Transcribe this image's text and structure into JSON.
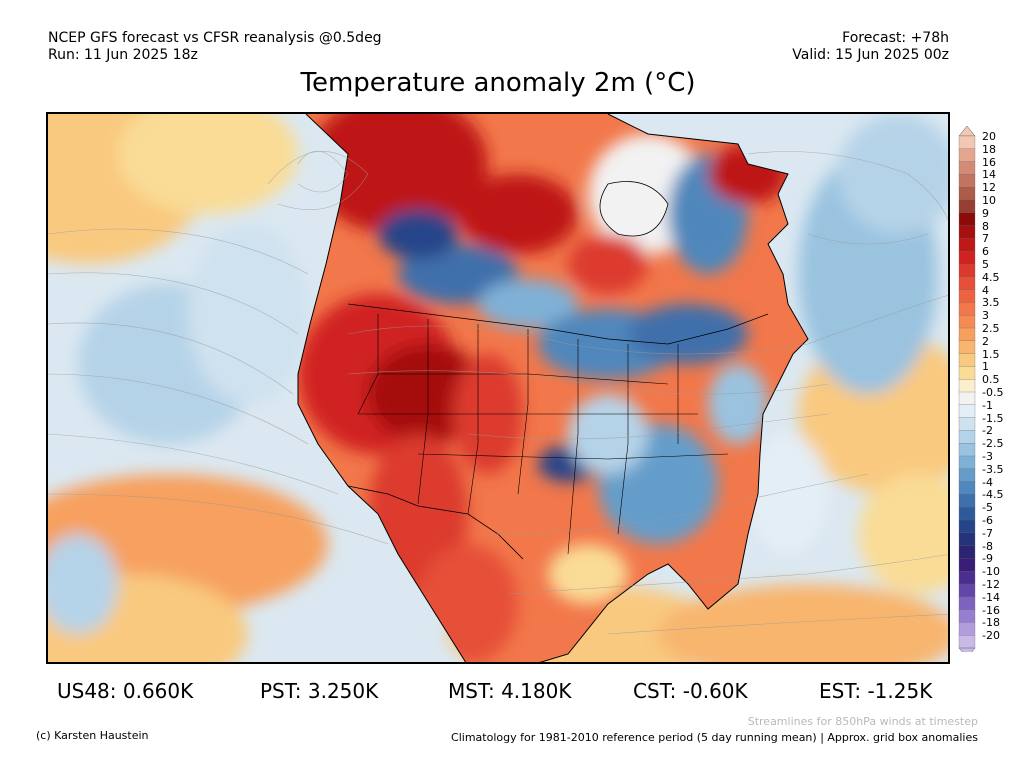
{
  "header": {
    "line1_left": "NCEP GFS forecast vs CFSR reanalysis @0.5deg",
    "line2_left": "Run: 11 Jun 2025 18z",
    "line1_right": "Forecast: +78h",
    "line2_right": "Valid: 15 Jun 2025 00z"
  },
  "title": "Temperature anomaly 2m (°C)",
  "colorbar": {
    "labels": [
      "20",
      "18",
      "16",
      "14",
      "12",
      "10",
      "9",
      "8",
      "7",
      "6",
      "5",
      "4.5",
      "4",
      "3.5",
      "3",
      "2.5",
      "2",
      "1.5",
      "1",
      "0.5",
      "-0.5",
      "-1",
      "-1.5",
      "-2",
      "-2.5",
      "-3",
      "-3.5",
      "-4",
      "-4.5",
      "-5",
      "-6",
      "-7",
      "-8",
      "-9",
      "-10",
      "-12",
      "-14",
      "-16",
      "-18",
      "-20"
    ],
    "colors": [
      "#f2c8b4",
      "#e4a68e",
      "#d48b75",
      "#c2745f",
      "#ae5b47",
      "#963e33",
      "#8b0a0a",
      "#a51010",
      "#be1818",
      "#d02222",
      "#dc3a2e",
      "#e64f38",
      "#ed6341",
      "#f2774a",
      "#f58b53",
      "#f7a05e",
      "#f8b56e",
      "#f9c97f",
      "#fadc96",
      "#fbeecd",
      "#f2f2f2",
      "#e4eef6",
      "#cfe2ef",
      "#b5d3e8",
      "#9ac3e0",
      "#7fb1d6",
      "#659dca",
      "#5087bc",
      "#3f70ab",
      "#2f5a9a",
      "#25458a",
      "#24337a",
      "#2b2470",
      "#3a1d78",
      "#4c2d90",
      "#6445a8",
      "#7d62be",
      "#977fcf",
      "#b19ddd",
      "#cab9e8"
    ]
  },
  "anomalies": {
    "us48": "US48: 0.660K",
    "pst": "PST: 3.250K",
    "mst": "MST: 4.180K",
    "cst": "CST: -0.60K",
    "est": "EST: -1.25K"
  },
  "footer": {
    "credit": "(c) Karsten Haustein",
    "streamlines_note": "Streamlines for 850hPa winds at timestep",
    "climatology_note": "Climatology for 1981-2010 reference period (5 day running mean) | Approx. grid box anomalies"
  }
}
